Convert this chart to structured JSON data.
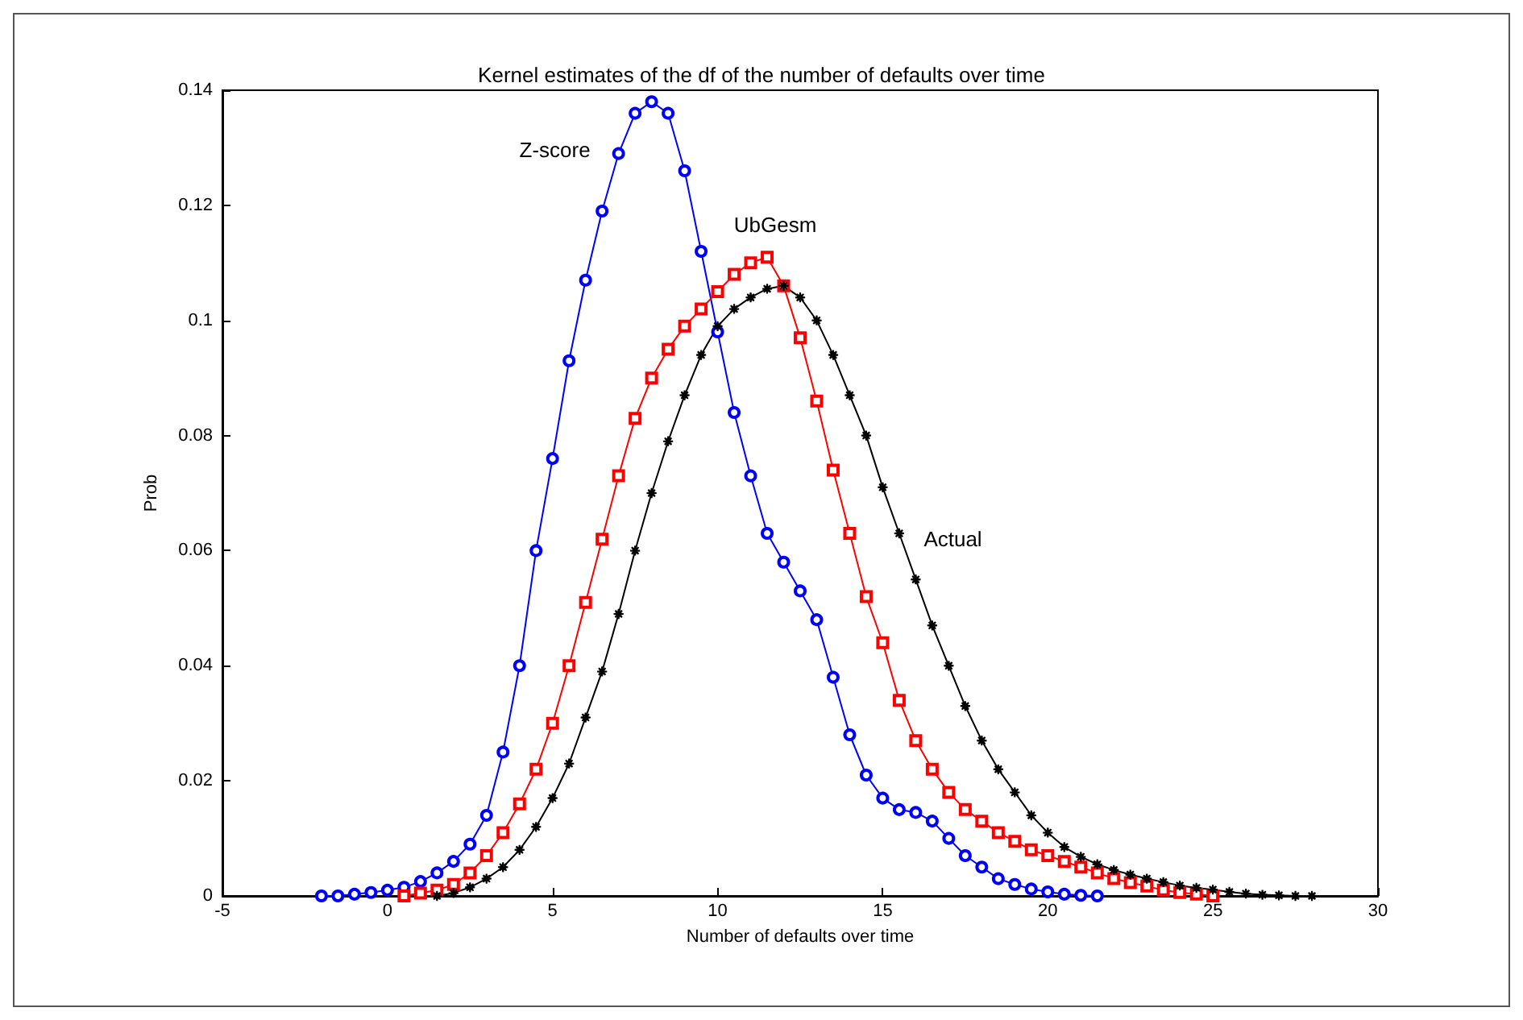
{
  "chart_data": {
    "type": "line",
    "title": "Kernel estimates of the df of the number of defaults over time",
    "xlabel": "Number of defaults over time",
    "ylabel": "Prob",
    "xlim": [
      -5,
      30
    ],
    "xticks": [
      -5,
      0,
      5,
      10,
      15,
      20,
      25,
      30
    ],
    "ylim": [
      0,
      0.14
    ],
    "yticks": [
      0,
      0.02,
      0.04,
      0.06,
      0.08,
      0.1,
      0.12,
      0.14
    ],
    "grid": false,
    "legend": false,
    "line_style": "solid",
    "series": [
      {
        "name": "Z-score",
        "color": "#0000ff",
        "marker": "circle",
        "x": [
          -2,
          -1.5,
          -1,
          -0.5,
          0,
          0.5,
          1,
          1.5,
          2,
          2.5,
          3,
          3.5,
          4,
          4.5,
          5,
          5.5,
          6,
          6.5,
          7,
          7.5,
          8,
          8.5,
          9,
          9.5,
          10,
          10.5,
          11,
          11.5,
          12,
          12.5,
          13,
          13.5,
          14,
          14.5,
          15,
          15.5,
          16,
          16.5,
          17,
          17.5,
          18,
          18.5,
          19,
          19.5,
          20,
          20.5,
          21,
          21.5
        ],
        "values": [
          0,
          0,
          0.0003,
          0.0006,
          0.001,
          0.0015,
          0.0025,
          0.004,
          0.006,
          0.009,
          0.014,
          0.025,
          0.04,
          0.06,
          0.076,
          0.093,
          0.107,
          0.119,
          0.129,
          0.136,
          0.138,
          0.136,
          0.126,
          0.112,
          0.098,
          0.084,
          0.073,
          0.063,
          0.058,
          0.053,
          0.048,
          0.038,
          0.028,
          0.021,
          0.017,
          0.015,
          0.0145,
          0.013,
          0.01,
          0.007,
          0.005,
          0.003,
          0.002,
          0.0012,
          0.0007,
          0.0003,
          0.0001,
          0
        ]
      },
      {
        "name": "UbGesm",
        "color": "#ff0000",
        "marker": "square",
        "x": [
          0.5,
          1,
          1.5,
          2,
          2.5,
          3,
          3.5,
          4,
          4.5,
          5,
          5.5,
          6,
          6.5,
          7,
          7.5,
          8,
          8.5,
          9,
          9.5,
          10,
          10.5,
          11,
          11.5,
          12,
          12.5,
          13,
          13.5,
          14,
          14.5,
          15,
          15.5,
          16,
          16.5,
          17,
          17.5,
          18,
          18.5,
          19,
          19.5,
          20,
          20.5,
          21,
          21.5,
          22,
          22.5,
          23,
          23.5,
          24,
          24.5,
          25
        ],
        "values": [
          0,
          0.0005,
          0.001,
          0.002,
          0.004,
          0.007,
          0.011,
          0.016,
          0.022,
          0.03,
          0.04,
          0.051,
          0.062,
          0.073,
          0.083,
          0.09,
          0.095,
          0.099,
          0.102,
          0.105,
          0.108,
          0.11,
          0.111,
          0.106,
          0.097,
          0.086,
          0.074,
          0.063,
          0.052,
          0.044,
          0.034,
          0.027,
          0.022,
          0.018,
          0.015,
          0.013,
          0.011,
          0.0095,
          0.008,
          0.007,
          0.006,
          0.005,
          0.004,
          0.003,
          0.0023,
          0.0017,
          0.001,
          0.0006,
          0.0003,
          0
        ]
      },
      {
        "name": "Actual",
        "color": "#000000",
        "marker": "star",
        "x": [
          1.5,
          2,
          2.5,
          3,
          3.5,
          4,
          4.5,
          5,
          5.5,
          6,
          6.5,
          7,
          7.5,
          8,
          8.5,
          9,
          9.5,
          10,
          10.5,
          11,
          11.5,
          12,
          12.5,
          13,
          13.5,
          14,
          14.5,
          15,
          15.5,
          16,
          16.5,
          17,
          17.5,
          18,
          18.5,
          19,
          19.5,
          20,
          20.5,
          21,
          21.5,
          22,
          22.5,
          23,
          23.5,
          24,
          24.5,
          25,
          25.5,
          26,
          26.5,
          27,
          27.5,
          28
        ],
        "values": [
          0,
          0.0005,
          0.0015,
          0.003,
          0.005,
          0.008,
          0.012,
          0.017,
          0.023,
          0.031,
          0.039,
          0.049,
          0.06,
          0.07,
          0.079,
          0.087,
          0.094,
          0.099,
          0.102,
          0.104,
          0.1055,
          0.106,
          0.104,
          0.1,
          0.094,
          0.087,
          0.08,
          0.071,
          0.063,
          0.055,
          0.047,
          0.04,
          0.033,
          0.027,
          0.022,
          0.018,
          0.014,
          0.011,
          0.0085,
          0.0068,
          0.0055,
          0.0045,
          0.0037,
          0.003,
          0.0024,
          0.0018,
          0.0014,
          0.0011,
          0.0007,
          0.0004,
          0.0002,
          0.0001,
          0,
          0
        ]
      }
    ]
  }
}
